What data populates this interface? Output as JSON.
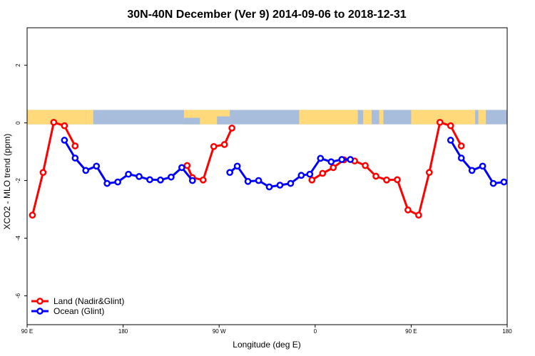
{
  "chart_data": {
    "type": "line",
    "title": "30N-40N December (Ver 9)   2014-09-06 to 2018-12-31",
    "xlabel": "Longitude (deg E)",
    "ylabel": "XCO2 - MLO trend (ppm)",
    "xlim": [
      90,
      540
    ],
    "ylim": [
      -7.0,
      3.3
    ],
    "x_ticks": [
      {
        "value": 90,
        "label": "90 E"
      },
      {
        "value": 180,
        "label": "180"
      },
      {
        "value": 270,
        "label": "90 W"
      },
      {
        "value": 360,
        "label": "0"
      },
      {
        "value": 450,
        "label": "90 E"
      },
      {
        "value": 540,
        "label": "180"
      }
    ],
    "y_ticks": [
      {
        "value": 2,
        "label": "2"
      },
      {
        "value": 0,
        "label": "0"
      },
      {
        "value": -2,
        "label": "-2"
      },
      {
        "value": -4,
        "label": "-4"
      },
      {
        "value": -6,
        "label": "-6"
      }
    ],
    "map_strip": {
      "ymin": -0.05,
      "ymax": 0.45,
      "ocean_color": "#a7bddb",
      "land_color": "#ffd97a"
    },
    "legend_position": "bottom-left",
    "series": [
      {
        "name": "Land (Nadir&Glint)",
        "color": "#ff0000",
        "segments": [
          [
            [
              95,
              -3.2
            ],
            [
              105,
              -1.72
            ],
            [
              115,
              0.02
            ],
            [
              125,
              -0.1
            ],
            [
              135,
              -0.8
            ]
          ],
          [
            [
              240,
              -1.48
            ],
            [
              245,
              -1.9
            ],
            [
              255,
              -1.98
            ],
            [
              265,
              -0.82
            ],
            [
              275,
              -0.75
            ],
            [
              282,
              -0.18
            ]
          ],
          [
            [
              357,
              -1.98
            ],
            [
              367,
              -1.75
            ],
            [
              377,
              -1.55
            ],
            [
              387,
              -1.28
            ],
            [
              397,
              -1.32
            ],
            [
              407,
              -1.48
            ],
            [
              417,
              -1.85
            ],
            [
              427,
              -1.98
            ],
            [
              437,
              -1.97
            ],
            [
              447,
              -3.02
            ],
            [
              457,
              -3.2
            ],
            [
              467,
              -1.72
            ],
            [
              477,
              0.02
            ],
            [
              487,
              -0.1
            ],
            [
              497,
              -0.8
            ]
          ]
        ]
      },
      {
        "name": "Ocean (Glint)",
        "color": "#0000ff",
        "segments": [
          [
            [
              125,
              -0.6
            ],
            [
              135,
              -1.22
            ],
            [
              145,
              -1.65
            ],
            [
              155,
              -1.5
            ],
            [
              165,
              -2.1
            ],
            [
              175,
              -2.05
            ],
            [
              185,
              -1.78
            ],
            [
              195,
              -1.86
            ],
            [
              205,
              -1.97
            ],
            [
              215,
              -1.98
            ],
            [
              225,
              -1.88
            ],
            [
              235,
              -1.55
            ],
            [
              245,
              -2.0
            ]
          ],
          [
            [
              280,
              -1.72
            ],
            [
              287,
              -1.5
            ],
            [
              297,
              -2.03
            ],
            [
              307,
              -2.0
            ],
            [
              317,
              -2.22
            ],
            [
              327,
              -2.16
            ],
            [
              337,
              -2.1
            ],
            [
              347,
              -1.82
            ],
            [
              355,
              -1.78
            ],
            [
              365,
              -1.23
            ],
            [
              375,
              -1.35
            ],
            [
              385,
              -1.27
            ],
            [
              393,
              -1.27
            ]
          ],
          [
            [
              487,
              -0.6
            ],
            [
              497,
              -1.22
            ],
            [
              507,
              -1.65
            ],
            [
              517,
              -1.5
            ],
            [
              527,
              -2.1
            ],
            [
              537,
              -2.05
            ]
          ]
        ]
      }
    ]
  }
}
